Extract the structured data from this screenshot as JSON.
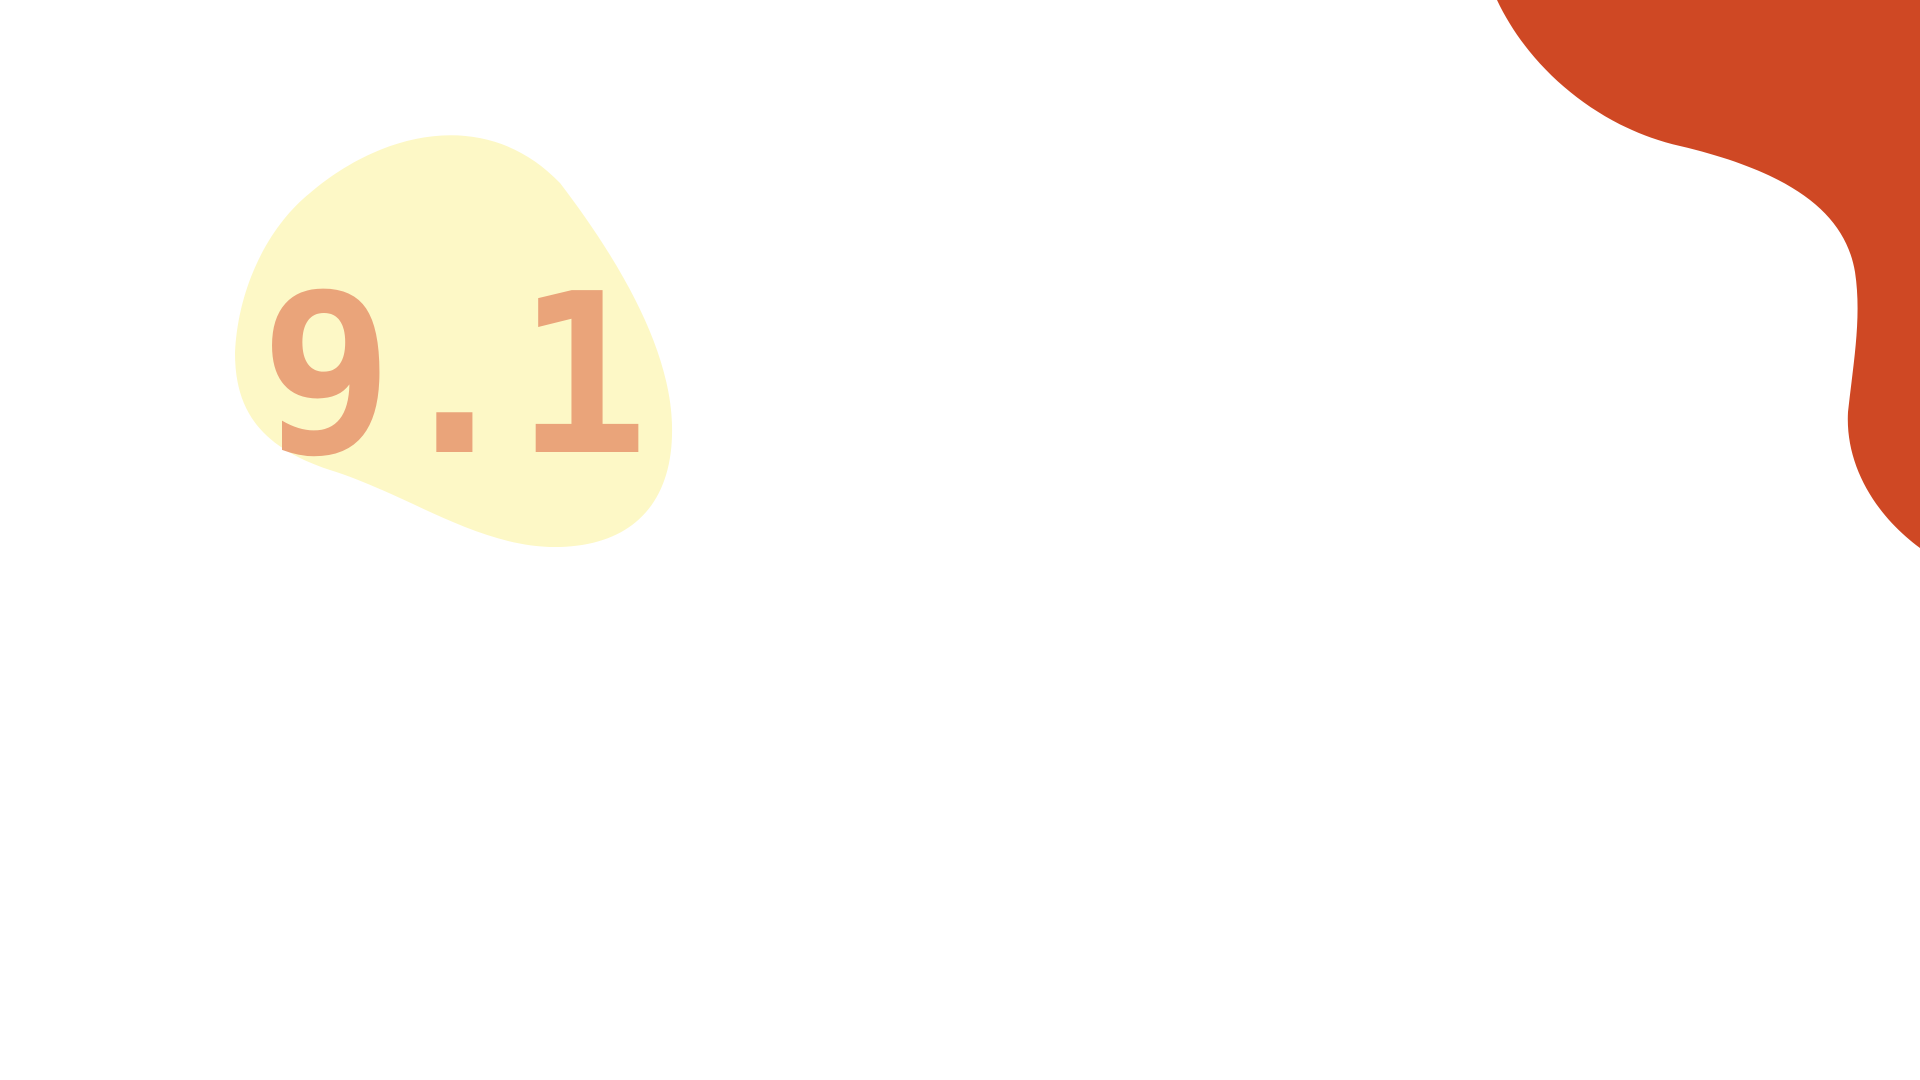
{
  "section_number": "9.1",
  "colors": {
    "background": "#ffffff",
    "accent_red": "#cf4824",
    "badge_fill": "#fdf8c6",
    "number_color": "#eaa47a"
  }
}
